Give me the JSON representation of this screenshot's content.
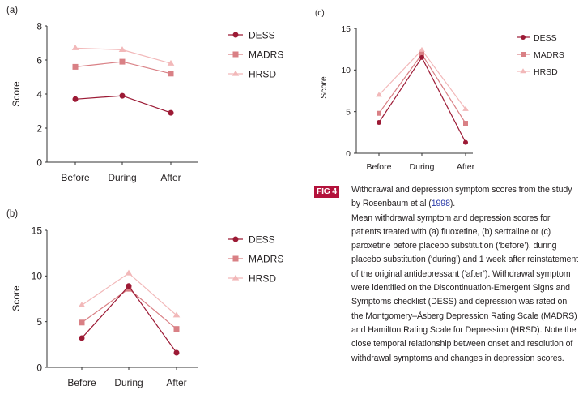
{
  "colors": {
    "DESS": "#9c1a35",
    "MADRS": "#d98085",
    "HRSD": "#f2b8b9",
    "axis": "#333333",
    "figlabel": "#b3123b"
  },
  "chart_data": [
    {
      "id": "a",
      "panel_label": "(a)",
      "type": "line",
      "categories": [
        "Before",
        "During",
        "After"
      ],
      "ylabel": "Score",
      "ylim": [
        0,
        8
      ],
      "yticks": [
        0,
        2,
        4,
        6,
        8
      ],
      "series": [
        {
          "name": "DESS",
          "values": [
            3.7,
            3.9,
            2.9
          ]
        },
        {
          "name": "MADRS",
          "values": [
            5.6,
            5.9,
            5.2
          ]
        },
        {
          "name": "HRSD",
          "values": [
            6.7,
            6.6,
            5.8
          ]
        }
      ],
      "legend": "top-right"
    },
    {
      "id": "b",
      "panel_label": "(b)",
      "type": "line",
      "categories": [
        "Before",
        "During",
        "After"
      ],
      "ylabel": "Score",
      "ylim": [
        0,
        15
      ],
      "yticks": [
        0,
        5,
        10,
        15
      ],
      "series": [
        {
          "name": "DESS",
          "values": [
            3.2,
            8.9,
            1.6
          ]
        },
        {
          "name": "MADRS",
          "values": [
            4.9,
            8.6,
            4.2
          ]
        },
        {
          "name": "HRSD",
          "values": [
            6.8,
            10.3,
            5.7
          ]
        }
      ],
      "legend": "top-right"
    },
    {
      "id": "c",
      "panel_label": "(c)",
      "type": "line",
      "categories": [
        "Before",
        "During",
        "After"
      ],
      "ylabel": "Score",
      "ylim": [
        0,
        15
      ],
      "yticks": [
        0,
        5,
        10,
        15
      ],
      "series": [
        {
          "name": "DESS",
          "values": [
            3.7,
            11.5,
            1.3
          ]
        },
        {
          "name": "MADRS",
          "values": [
            4.8,
            11.9,
            3.6
          ]
        },
        {
          "name": "HRSD",
          "values": [
            7.0,
            12.4,
            5.3
          ]
        }
      ],
      "legend": "top-right"
    }
  ],
  "caption": {
    "fig_label": "FIG 4",
    "title_start": "Withdrawal and depression symptom scores from the study by Rosenbaum et al (",
    "ref_year": "1998",
    "title_end": ").",
    "body": "Mean withdrawal symptom and depression scores for patients treated with (a) fluoxetine, (b) sertraline or (c) paroxetine before placebo substitution (‘before’), during placebo substitution (‘during’) and 1 week after reinstatement of the original antidepressant (‘after’). Withdrawal symptom were identified on the Discontinuation-Emergent Signs and Symptoms checklist (DESS) and depression was rated on the Montgomery–Åsberg Depression Rating Scale (MADRS) and Hamilton Rating Scale for Depression (HRSD). Note the close temporal relationship between onset and resolution of withdrawal symptoms and changes in depression scores."
  }
}
